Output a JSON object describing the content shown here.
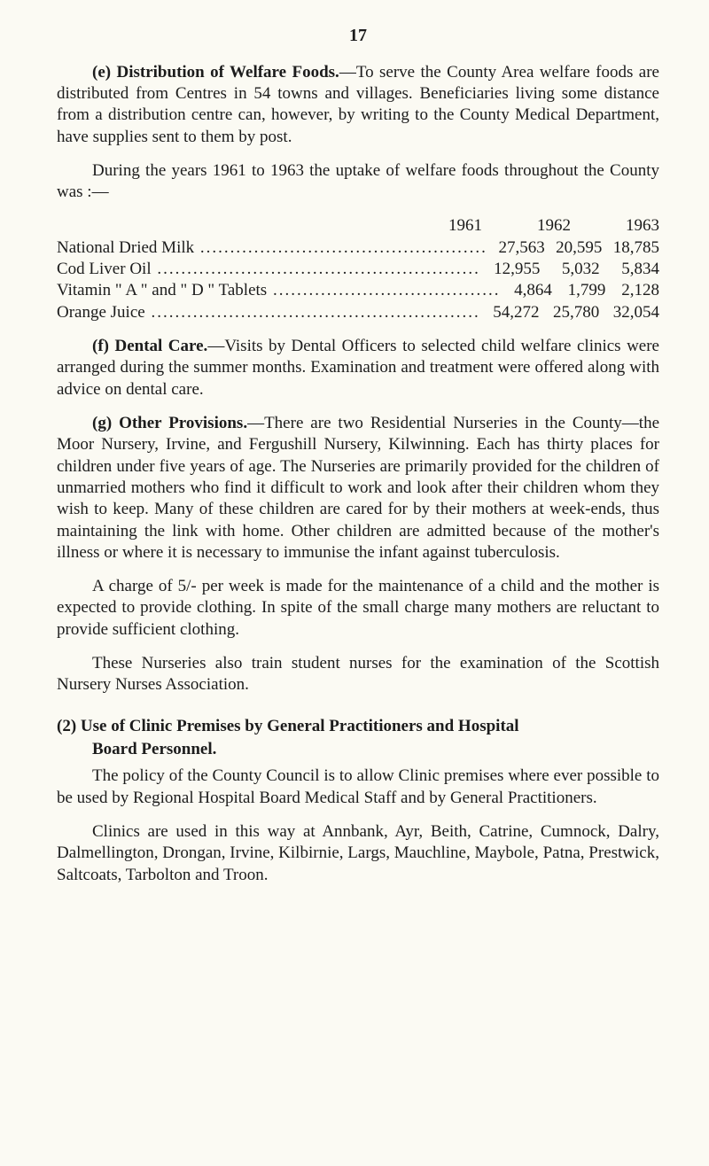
{
  "page_number": "17",
  "para_e": {
    "lead_bold": "(e) Distribution of Welfare Foods.",
    "text": "—To serve the County Area welfare foods are distributed from Centres in 54 towns and villages. Beneficiaries living some distance from a distribution centre can, however, by writing to the County Medical Department, have supplies sent to them by post."
  },
  "para_e2": "During the years 1961 to 1963 the uptake of welfare foods throughout the County was :—",
  "table": {
    "years": [
      "1961",
      "1962",
      "1963"
    ],
    "rows": [
      {
        "label": "National Dried Milk",
        "values": [
          "27,563",
          "20,595",
          "18,785"
        ]
      },
      {
        "label": "Cod Liver Oil",
        "values": [
          "12,955",
          "5,032",
          "5,834"
        ]
      },
      {
        "label": "Vitamin \" A \" and \" D \" Tablets",
        "values": [
          "4,864",
          "1,799",
          "2,128"
        ]
      },
      {
        "label": "Orange Juice",
        "values": [
          "54,272",
          "25,780",
          "32,054"
        ]
      }
    ]
  },
  "para_f": {
    "lead_bold": "(f) Dental Care.",
    "text": "—Visits by Dental Officers to selected child welfare clinics were arranged during the summer months. Examination and treatment were offered along with advice on dental care."
  },
  "para_g": {
    "lead_bold": "(g) Other Provisions.",
    "text": "—There are two Residential Nurseries in the County—the Moor Nursery, Irvine, and Fergushill Nursery, Kilwinning. Each has thirty places for children under five years of age. The Nurseries are primarily provided for the children of unmarried mothers who find it difficult to work and look after their children whom they wish to keep. Many of these children are cared for by their mothers at week-ends, thus maintaining the link with home. Other children are admitted because of the mother's illness or where it is necessary to immunise the infant against tuberculosis."
  },
  "para_g2": "A charge of 5/- per week is made for the maintenance of a child and the mother is expected to provide clothing. In spite of the small charge many mothers are reluctant to provide sufficient clothing.",
  "para_g3": "These Nurseries also train student nurses for the examination of the Scottish Nursery Nurses Association.",
  "section2": {
    "heading": "(2) Use of Clinic Premises by General Practitioners and Hospital",
    "heading_line2": "Board Personnel.",
    "p1": "The policy of the County Council is to allow Clinic premises where ever possible to be used by Regional Hospital Board Medical Staff and by General Practitioners.",
    "p2": "Clinics are used in this way at Annbank, Ayr, Beith, Catrine, Cumnock, Dalry, Dalmellington, Drongan, Irvine, Kilbirnie, Largs, Mauchline, Maybole, Patna, Prestwick, Saltcoats, Tarbolton and Troon."
  }
}
